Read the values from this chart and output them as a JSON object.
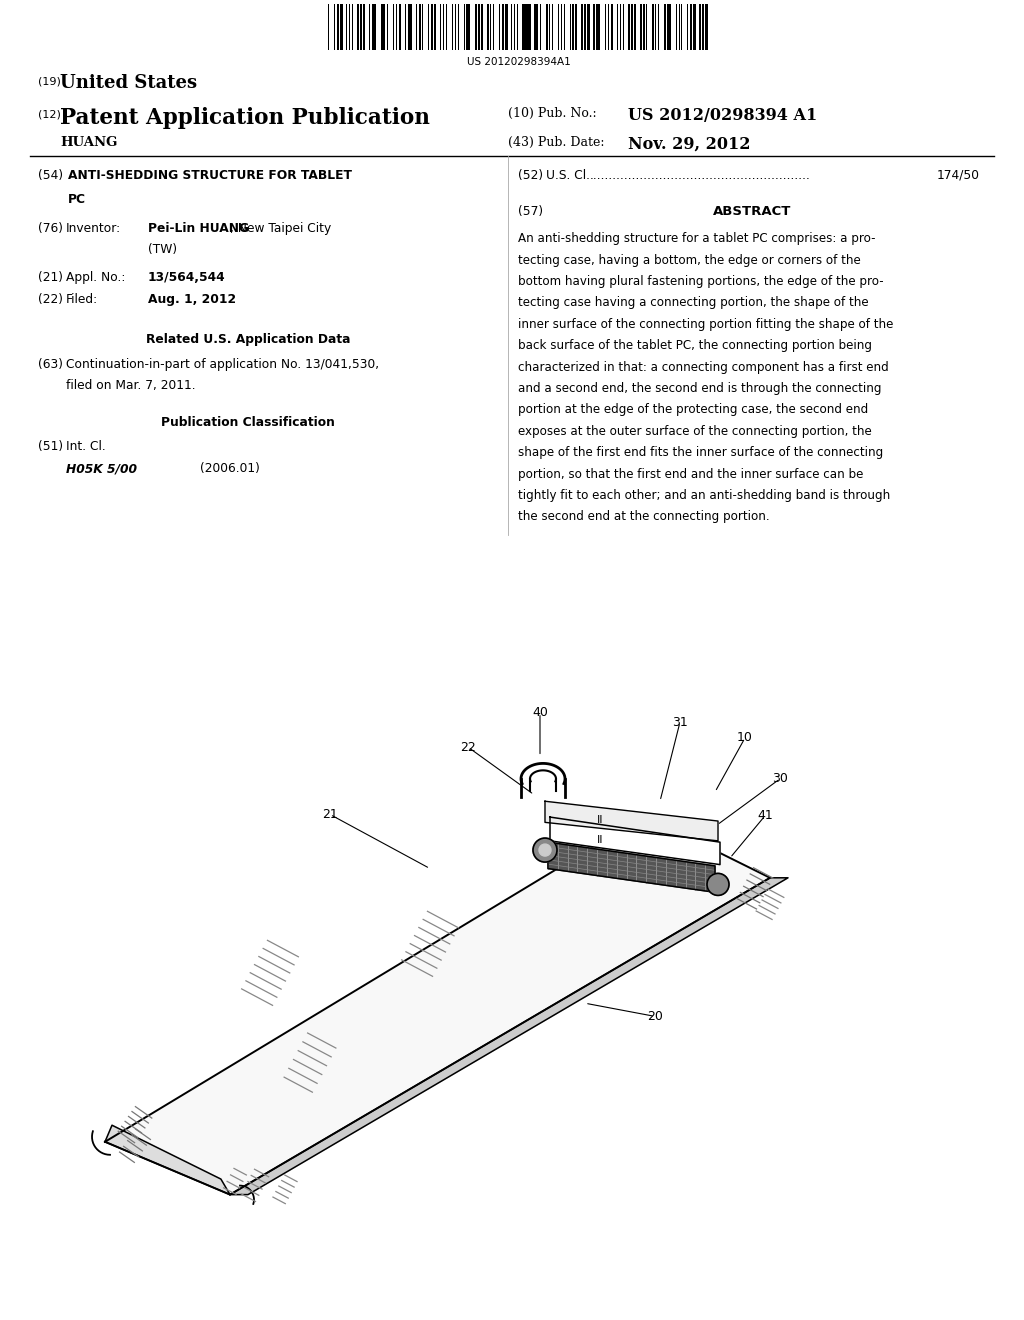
{
  "background_color": "#ffffff",
  "barcode_text": "US 20120298394A1",
  "header": {
    "country_label": "(19)",
    "country_name": "United States",
    "type_label": "(12)",
    "type_name": "Patent Application Publication",
    "inventor_name": "HUANG",
    "pub_no_label": "(10) Pub. No.:",
    "pub_no_value": "US 2012/0298394 A1",
    "pub_date_label": "(43) Pub. Date:",
    "pub_date_value": "Nov. 29, 2012"
  },
  "left_col": {
    "title_num": "(54)",
    "title_line1": "ANTI-SHEDDING STRUCTURE FOR TABLET",
    "title_line2": "PC",
    "inventor_num": "(76)",
    "inventor_label": "Inventor:",
    "inventor_bold": "Pei-Lin HUANG",
    "inventor_rest": ", New Taipei City",
    "inventor_tw": "(TW)",
    "appl_num": "(21)",
    "appl_label": "Appl. No.:",
    "appl_value": "13/564,544",
    "filed_num": "(22)",
    "filed_label": "Filed:",
    "filed_value": "Aug. 1, 2012",
    "related_header": "Related U.S. Application Data",
    "continuation_num": "(63)",
    "continuation_line1": "Continuation-in-part of application No. 13/041,530,",
    "continuation_line2": "filed on Mar. 7, 2011.",
    "pub_class_header": "Publication Classification",
    "int_cl_num": "(51)",
    "int_cl_label": "Int. Cl.",
    "int_cl_value": "H05K 5/00",
    "int_cl_year": "(2006.01)"
  },
  "right_col": {
    "us_cl_num": "(52)",
    "us_cl_label": "U.S. Cl.",
    "us_cl_dots": ".........................................................",
    "us_cl_value": "174/50",
    "abstract_num": "(57)",
    "abstract_header": "ABSTRACT",
    "abstract_lines": [
      "An anti-shedding structure for a tablet PC comprises: a pro-",
      "tecting case, having a bottom, the edge or corners of the",
      "bottom having plural fastening portions, the edge of the pro-",
      "tecting case having a connecting portion, the shape of the",
      "inner surface of the connecting portion fitting the shape of the",
      "back surface of the tablet PC, the connecting portion being",
      "characterized in that: a connecting component has a first end",
      "and a second end, the second end is through the connecting",
      "portion at the edge of the protecting case, the second end",
      "exposes at the outer surface of the connecting portion, the",
      "shape of the first end fits the inner surface of the connecting",
      "portion, so that the first end and the inner surface can be",
      "tightly fit to each other; and an anti-shedding band is through",
      "the second end at the connecting portion."
    ]
  }
}
